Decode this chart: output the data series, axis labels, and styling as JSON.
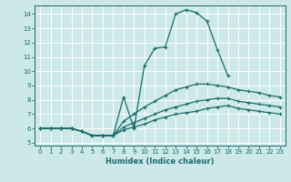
{
  "xlabel": "Humidex (Indice chaleur)",
  "xlim": [
    -0.5,
    23.5
  ],
  "ylim": [
    4.8,
    14.6
  ],
  "xticks": [
    0,
    1,
    2,
    3,
    4,
    5,
    6,
    7,
    8,
    9,
    10,
    11,
    12,
    13,
    14,
    15,
    16,
    17,
    18,
    19,
    20,
    21,
    22,
    23
  ],
  "yticks": [
    5,
    6,
    7,
    8,
    9,
    10,
    11,
    12,
    13,
    14
  ],
  "bg_color": "#cce8e8",
  "line_color": "#1a6b6b",
  "grid_color": "#ffffff",
  "curve1_x": [
    0,
    1,
    2,
    3,
    4,
    5,
    6,
    7,
    8,
    9,
    10,
    11,
    12,
    13,
    14,
    15,
    16,
    17,
    18,
    19,
    20,
    21,
    22,
    23
  ],
  "curve1_y": [
    6.0,
    6.0,
    6.0,
    6.0,
    5.8,
    5.5,
    5.5,
    5.5,
    8.2,
    6.0,
    10.4,
    11.6,
    11.7,
    14.0,
    14.3,
    14.1,
    13.5,
    11.5,
    9.7,
    null,
    null,
    null,
    null,
    null
  ],
  "curve2_x": [
    0,
    1,
    2,
    3,
    4,
    5,
    6,
    7,
    8,
    9,
    10,
    11,
    12,
    13,
    14,
    15,
    16,
    17,
    18,
    19,
    20,
    21,
    22,
    23
  ],
  "curve2_y": [
    6.0,
    6.0,
    6.0,
    6.0,
    5.8,
    5.5,
    5.5,
    5.5,
    6.5,
    7.0,
    7.5,
    7.9,
    8.3,
    8.7,
    8.9,
    9.1,
    9.1,
    9.0,
    8.9,
    8.7,
    8.6,
    8.5,
    8.3,
    8.2
  ],
  "curve3_x": [
    0,
    1,
    2,
    3,
    4,
    5,
    6,
    7,
    8,
    9,
    10,
    11,
    12,
    13,
    14,
    15,
    16,
    17,
    18,
    19,
    20,
    21,
    22,
    23
  ],
  "curve3_y": [
    6.0,
    6.0,
    6.0,
    6.0,
    5.8,
    5.5,
    5.5,
    5.5,
    6.1,
    6.4,
    6.7,
    7.0,
    7.3,
    7.5,
    7.7,
    7.9,
    8.0,
    8.1,
    8.1,
    7.9,
    7.8,
    7.7,
    7.6,
    7.5
  ],
  "curve4_x": [
    0,
    1,
    2,
    3,
    4,
    5,
    6,
    7,
    8,
    9,
    10,
    11,
    12,
    13,
    14,
    15,
    16,
    17,
    18,
    19,
    20,
    21,
    22,
    23
  ],
  "curve4_y": [
    6.0,
    6.0,
    6.0,
    6.0,
    5.8,
    5.5,
    5.5,
    5.5,
    5.9,
    6.1,
    6.3,
    6.6,
    6.8,
    7.0,
    7.1,
    7.2,
    7.4,
    7.5,
    7.6,
    7.4,
    7.3,
    7.2,
    7.1,
    7.0
  ]
}
